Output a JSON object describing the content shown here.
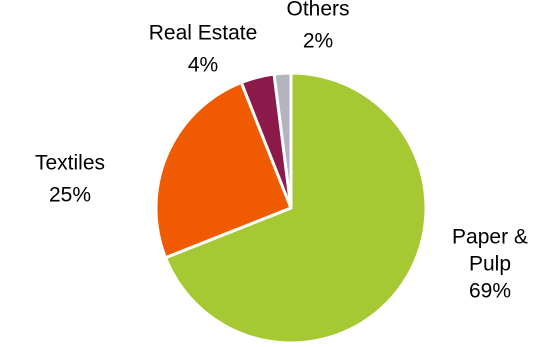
{
  "chart_data": {
    "type": "pie",
    "slices": [
      {
        "label_lines": [
          "Paper &",
          "Pulp"
        ],
        "percent_label": "69%",
        "value": 69,
        "color": "#a6c832"
      },
      {
        "label_lines": [
          "Textiles"
        ],
        "percent_label": "25%",
        "value": 25,
        "color": "#f05a00"
      },
      {
        "label_lines": [
          "Real Estate"
        ],
        "percent_label": "4%",
        "value": 4,
        "color": "#8b1a4a"
      },
      {
        "label_lines": [
          "Others"
        ],
        "percent_label": "2%",
        "value": 2,
        "color": "#b4b4be"
      }
    ],
    "start_angle_deg": 0,
    "direction": "clockwise",
    "slice_border_color": "#ffffff",
    "legend": "none"
  }
}
